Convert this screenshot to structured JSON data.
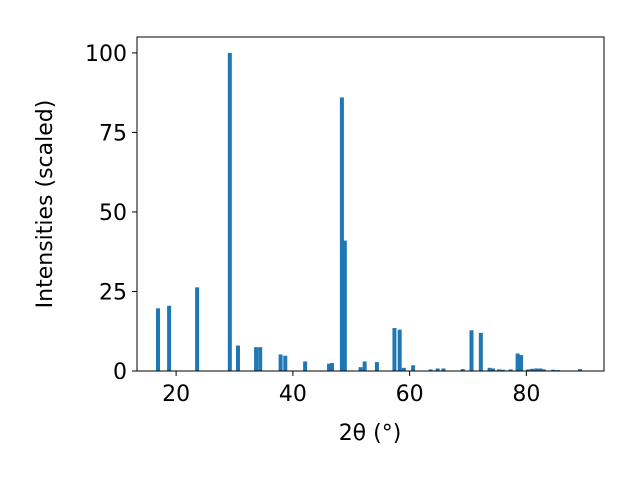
{
  "chart_data": {
    "type": "bar",
    "xlabel": "2θ (°)",
    "ylabel": "Intensities (scaled)",
    "color": "#1f77b4",
    "x": [
      16.9,
      18.8,
      23.6,
      29.2,
      30.6,
      33.7,
      34.4,
      37.9,
      38.7,
      42.1,
      46.2,
      46.7,
      48.4,
      48.9,
      51.6,
      52.3,
      54.4,
      57.4,
      58.3,
      59.0,
      60.6,
      63.6,
      64.8,
      65.8,
      69.1,
      70.6,
      72.2,
      73.7,
      74.3,
      75.3,
      76.0,
      77.3,
      78.5,
      79.1,
      80.3,
      81.0,
      81.7,
      82.4,
      83.0,
      84.6,
      85.4,
      89.2
    ],
    "values": [
      19.7,
      20.5,
      26.3,
      100,
      8,
      7.5,
      7.5,
      5.2,
      4.8,
      3,
      2.3,
      2.5,
      86,
      41,
      1.2,
      3,
      2.8,
      13.5,
      13,
      1,
      1.8,
      0.5,
      0.8,
      0.8,
      0.6,
      12.8,
      12,
      1,
      0.8,
      0.5,
      0.4,
      0.5,
      5.5,
      5,
      0.5,
      0.7,
      0.8,
      0.8,
      0.5,
      0.4,
      0.3,
      0.6
    ],
    "xlim": [
      13.3,
      93.3
    ],
    "ylim": [
      0,
      105
    ],
    "xticks": [
      20,
      40,
      60,
      80
    ],
    "yticks": [
      0,
      25,
      50,
      75,
      100
    ]
  }
}
